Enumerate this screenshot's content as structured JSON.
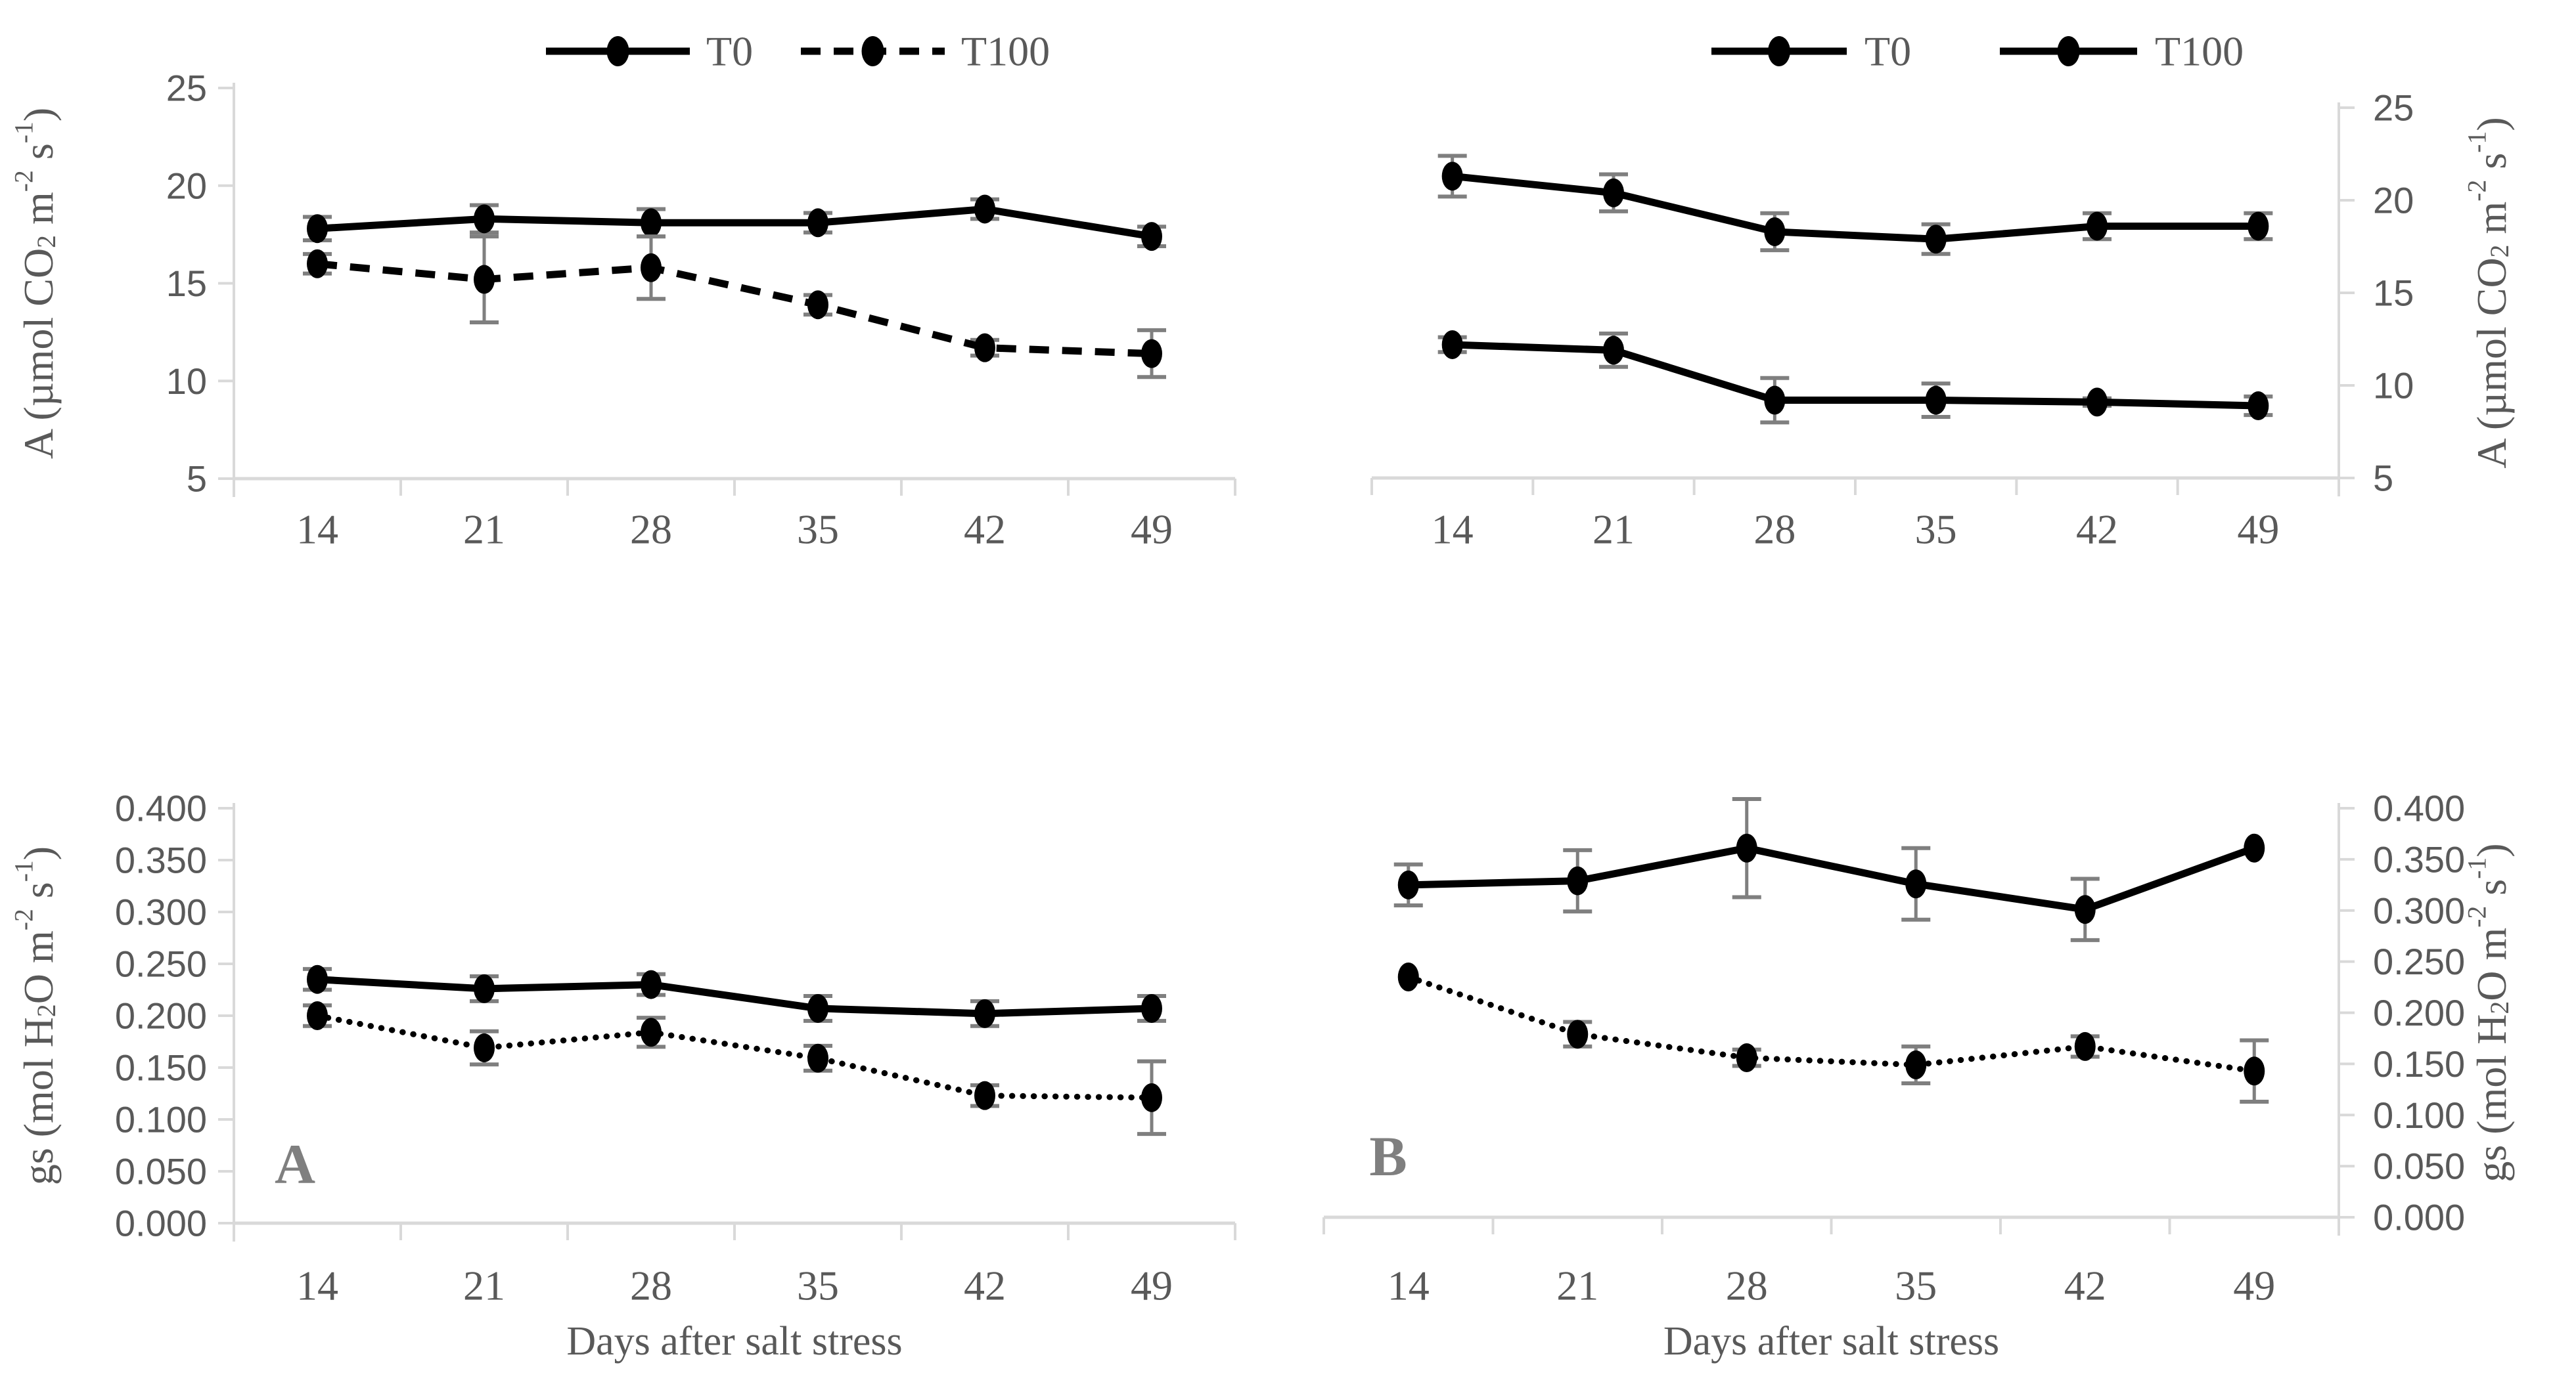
{
  "figure": {
    "background": "#ffffff",
    "text_color": "#595959",
    "letter_color": "#7f7f7f",
    "axis_color": "#d9d9d9",
    "series_color": "#000000",
    "error_color": "#7f7f7f",
    "x_axis_title": "Days after salt stress"
  },
  "chart_data": [
    {
      "panel": "top-left",
      "type": "line",
      "title": "",
      "ylabel": "A (µmol CO2 m-2 s-1)",
      "ylabel_parts": [
        {
          "t": "A (µmol CO"
        },
        {
          "t": "2",
          "s": "sub"
        },
        {
          "t": " m"
        },
        {
          "t": "-2",
          "s": "sup"
        },
        {
          "t": " s"
        },
        {
          "t": "-1",
          "s": "sup"
        },
        {
          "t": ")"
        }
      ],
      "y_axis": {
        "side": "left",
        "min": 5,
        "max": 25,
        "step": 5,
        "decimals": 0
      },
      "x_categories": [
        "14",
        "21",
        "28",
        "35",
        "42",
        "49"
      ],
      "xlabel": "",
      "panel_letter": "",
      "legend": {
        "visible": true,
        "items": [
          {
            "label": "T0",
            "style": "solid"
          },
          {
            "label": "T100",
            "style": "dashed"
          }
        ]
      },
      "series": [
        {
          "name": "T0",
          "style": "solid",
          "values": [
            17.8,
            18.3,
            18.1,
            18.1,
            18.8,
            17.4
          ],
          "errors": [
            0.6,
            0.7,
            0.7,
            0.5,
            0.5,
            0.5
          ]
        },
        {
          "name": "T100",
          "style": "dashed",
          "values": [
            16.0,
            15.2,
            15.8,
            13.9,
            11.7,
            11.4
          ],
          "errors": [
            0.5,
            2.2,
            1.6,
            0.5,
            0.4,
            1.2
          ]
        }
      ]
    },
    {
      "panel": "top-right",
      "type": "line",
      "title": "",
      "ylabel": "A (µmol CO2 m-2 s-1)",
      "ylabel_parts": [
        {
          "t": "A (µmol CO"
        },
        {
          "t": "2",
          "s": "sub"
        },
        {
          "t": " m"
        },
        {
          "t": "-2",
          "s": "sup"
        },
        {
          "t": " s"
        },
        {
          "t": "-1",
          "s": "sup"
        },
        {
          "t": ")"
        }
      ],
      "y_axis": {
        "side": "right",
        "min": 5,
        "max": 25,
        "step": 5,
        "decimals": 0
      },
      "x_categories": [
        "14",
        "21",
        "28",
        "35",
        "42",
        "49"
      ],
      "xlabel": "",
      "panel_letter": "",
      "legend": {
        "visible": true,
        "items": [
          {
            "label": "T0",
            "style": "solid"
          },
          {
            "label": "T100",
            "style": "solid"
          }
        ]
      },
      "series": [
        {
          "name": "T0",
          "style": "solid",
          "values": [
            21.3,
            20.4,
            18.3,
            17.9,
            18.6,
            18.6
          ],
          "errors": [
            1.1,
            1.0,
            1.0,
            0.8,
            0.7,
            0.7
          ]
        },
        {
          "name": "T100",
          "style": "solid",
          "values": [
            12.2,
            11.9,
            9.2,
            9.2,
            9.1,
            8.9
          ],
          "errors": [
            0.4,
            0.9,
            1.2,
            0.9,
            0.2,
            0.5
          ]
        }
      ]
    },
    {
      "panel": "bottom-left",
      "type": "line",
      "title": "",
      "ylabel": "gs (mol H2O m-2 s-1)",
      "ylabel_parts": [
        {
          "t": "gs (mol H"
        },
        {
          "t": "2",
          "s": "sub"
        },
        {
          "t": "O m"
        },
        {
          "t": "-2",
          "s": "sup"
        },
        {
          "t": " s"
        },
        {
          "t": "-1",
          "s": "sup"
        },
        {
          "t": ")"
        }
      ],
      "y_axis": {
        "side": "left",
        "min": 0,
        "max": 0.4,
        "step": 0.05,
        "decimals": 3
      },
      "x_categories": [
        "14",
        "21",
        "28",
        "35",
        "42",
        "49"
      ],
      "xlabel": "Days after salt stress",
      "panel_letter": "A",
      "legend": {
        "visible": false,
        "items": []
      },
      "series": [
        {
          "name": "T0",
          "style": "solid",
          "values": [
            0.235,
            0.226,
            0.23,
            0.207,
            0.202,
            0.207
          ],
          "errors": [
            0.01,
            0.012,
            0.01,
            0.012,
            0.012,
            0.012
          ]
        },
        {
          "name": "T100",
          "style": "dotted",
          "values": [
            0.2,
            0.169,
            0.184,
            0.159,
            0.123,
            0.121
          ],
          "errors": [
            0.01,
            0.016,
            0.014,
            0.012,
            0.01,
            0.035
          ]
        }
      ]
    },
    {
      "panel": "bottom-right",
      "type": "line",
      "title": "",
      "ylabel": "gs (mol H2O m-2 s-1)",
      "ylabel_parts": [
        {
          "t": "gs (mol H"
        },
        {
          "t": "2",
          "s": "sub"
        },
        {
          "t": "O m"
        },
        {
          "t": "-2",
          "s": "sup"
        },
        {
          "t": " s"
        },
        {
          "t": "-1",
          "s": "sup"
        },
        {
          "t": ")"
        }
      ],
      "y_axis": {
        "side": "right",
        "min": 0,
        "max": 0.4,
        "step": 0.05,
        "decimals": 3
      },
      "x_categories": [
        "14",
        "21",
        "28",
        "35",
        "42",
        "49"
      ],
      "xlabel": "Days after salt stress",
      "panel_letter": "B",
      "legend": {
        "visible": false,
        "items": []
      },
      "series": [
        {
          "name": "T0",
          "style": "solid",
          "values": [
            0.325,
            0.329,
            0.361,
            0.326,
            0.301,
            0.361
          ],
          "errors": [
            0.02,
            0.03,
            0.048,
            0.035,
            0.03,
            0
          ]
        },
        {
          "name": "T100",
          "style": "dotted",
          "values": [
            0.235,
            0.179,
            0.156,
            0.149,
            0.167,
            0.143
          ],
          "errors": [
            0,
            0.012,
            0.008,
            0.018,
            0.01,
            0.03
          ]
        }
      ]
    }
  ]
}
